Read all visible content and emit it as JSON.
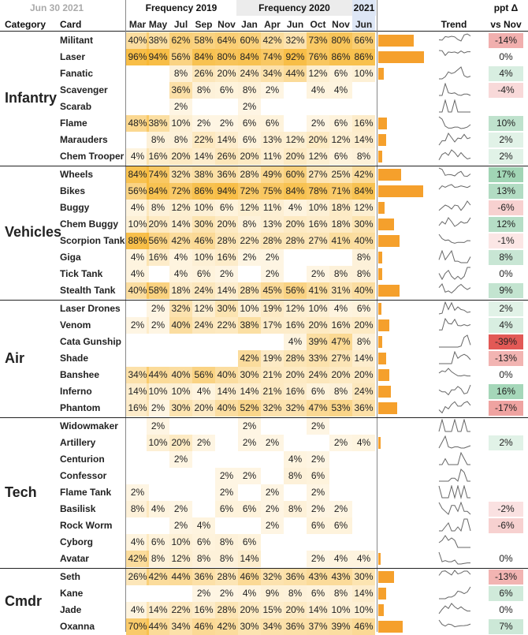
{
  "header": {
    "date": "Jun 30 2021",
    "col_category": "Category",
    "col_card": "Card",
    "group_2019": "Frequency 2019",
    "group_2020": "Frequency 2020",
    "group_2021": "2021",
    "col_trend": "Trend",
    "col_delta_line1": "ppt Δ",
    "col_delta_line2": "vs Nov",
    "months": [
      "Mar",
      "May",
      "Jul",
      "Sep",
      "Nov",
      "Jan",
      "Apr",
      "Jun",
      "Oct",
      "Nov",
      "Jun"
    ]
  },
  "colors": {
    "cell_heat": "#f7b733",
    "bar": "#f5a02c",
    "positive_strong": "#4caf73",
    "negative_strong": "#e0504d",
    "grid_line": "#222222"
  },
  "chart_data": {
    "type": "table",
    "value_unit": "percent",
    "categories": [
      {
        "name": "Infantry",
        "cards": [
          {
            "name": "Militant",
            "values": [
              40,
              38,
              62,
              58,
              64,
              60,
              42,
              32,
              73,
              80,
              66
            ],
            "delta": "-14%",
            "delta_value": -14
          },
          {
            "name": "Laser",
            "values": [
              96,
              94,
              56,
              84,
              80,
              84,
              74,
              92,
              76,
              86,
              86
            ],
            "delta": "0%",
            "delta_value": 0
          },
          {
            "name": "Fanatic",
            "values": [
              null,
              null,
              8,
              26,
              20,
              24,
              34,
              44,
              12,
              6,
              10
            ],
            "delta": "4%",
            "delta_value": 4
          },
          {
            "name": "Scavenger",
            "values": [
              null,
              null,
              36,
              8,
              6,
              8,
              2,
              null,
              4,
              4,
              null
            ],
            "delta": "-4%",
            "delta_value": -4
          },
          {
            "name": "Scarab",
            "values": [
              null,
              null,
              2,
              null,
              null,
              2,
              null,
              null,
              null,
              null,
              null
            ],
            "delta": "",
            "delta_value": null
          },
          {
            "name": "Flame",
            "values": [
              48,
              38,
              10,
              2,
              2,
              6,
              6,
              null,
              2,
              6,
              16
            ],
            "delta": "10%",
            "delta_value": 10
          },
          {
            "name": "Marauders",
            "values": [
              null,
              8,
              8,
              22,
              14,
              6,
              13,
              12,
              20,
              12,
              14
            ],
            "delta": "2%",
            "delta_value": 2
          },
          {
            "name": "Chem Trooper",
            "values": [
              4,
              16,
              20,
              14,
              26,
              20,
              11,
              20,
              12,
              6,
              8
            ],
            "delta": "2%",
            "delta_value": 2
          }
        ]
      },
      {
        "name": "Vehicles",
        "cards": [
          {
            "name": "Wheels",
            "values": [
              84,
              74,
              32,
              38,
              36,
              28,
              49,
              60,
              27,
              25,
              42
            ],
            "delta": "17%",
            "delta_value": 17
          },
          {
            "name": "Bikes",
            "values": [
              56,
              84,
              72,
              86,
              94,
              72,
              75,
              84,
              78,
              71,
              84
            ],
            "delta": "13%",
            "delta_value": 13
          },
          {
            "name": "Buggy",
            "values": [
              4,
              8,
              12,
              10,
              6,
              12,
              11,
              4,
              10,
              18,
              12
            ],
            "delta": "-6%",
            "delta_value": -6
          },
          {
            "name": "Chem Buggy",
            "values": [
              10,
              20,
              14,
              30,
              20,
              8,
              13,
              20,
              16,
              18,
              30
            ],
            "delta": "12%",
            "delta_value": 12
          },
          {
            "name": "Scorpion Tank",
            "values": [
              88,
              56,
              42,
              46,
              28,
              22,
              28,
              28,
              27,
              41,
              40
            ],
            "delta": "-1%",
            "delta_value": -1
          },
          {
            "name": "Giga",
            "values": [
              4,
              16,
              4,
              10,
              16,
              2,
              2,
              null,
              null,
              null,
              8
            ],
            "delta": "8%",
            "delta_value": 8
          },
          {
            "name": "Tick Tank",
            "values": [
              4,
              null,
              4,
              6,
              2,
              null,
              2,
              null,
              2,
              8,
              8
            ],
            "delta": "0%",
            "delta_value": 0
          },
          {
            "name": "Stealth Tank",
            "values": [
              40,
              58,
              18,
              24,
              14,
              28,
              45,
              56,
              41,
              31,
              40
            ],
            "delta": "9%",
            "delta_value": 9
          }
        ]
      },
      {
        "name": "Air",
        "cards": [
          {
            "name": "Laser Drones",
            "values": [
              null,
              2,
              32,
              12,
              30,
              10,
              19,
              12,
              10,
              4,
              6
            ],
            "delta": "2%",
            "delta_value": 2
          },
          {
            "name": "Venom",
            "values": [
              2,
              2,
              40,
              24,
              22,
              38,
              17,
              16,
              20,
              16,
              20
            ],
            "delta": "4%",
            "delta_value": 4
          },
          {
            "name": "Cata Gunship",
            "values": [
              null,
              null,
              null,
              null,
              null,
              null,
              null,
              4,
              39,
              47,
              8
            ],
            "delta": "-39%",
            "delta_value": -39
          },
          {
            "name": "Shade",
            "values": [
              null,
              null,
              null,
              null,
              null,
              42,
              19,
              28,
              33,
              27,
              14
            ],
            "delta": "-13%",
            "delta_value": -13
          },
          {
            "name": "Banshee",
            "values": [
              34,
              44,
              40,
              56,
              40,
              30,
              21,
              20,
              24,
              20,
              20
            ],
            "delta": "0%",
            "delta_value": 0
          },
          {
            "name": "Inferno",
            "values": [
              14,
              10,
              10,
              4,
              14,
              14,
              21,
              16,
              6,
              8,
              24
            ],
            "delta": "16%",
            "delta_value": 16
          },
          {
            "name": "Phantom",
            "values": [
              16,
              2,
              30,
              20,
              40,
              52,
              32,
              32,
              47,
              53,
              36
            ],
            "delta": "-17%",
            "delta_value": -17
          }
        ]
      },
      {
        "name": "Tech",
        "cards": [
          {
            "name": "Widowmaker",
            "values": [
              null,
              2,
              null,
              null,
              null,
              2,
              null,
              null,
              2,
              null,
              null
            ],
            "delta": "",
            "delta_value": null
          },
          {
            "name": "Artillery",
            "values": [
              null,
              10,
              20,
              2,
              null,
              2,
              2,
              null,
              null,
              2,
              4
            ],
            "delta": "2%",
            "delta_value": 2
          },
          {
            "name": "Centurion",
            "values": [
              null,
              null,
              2,
              null,
              null,
              null,
              null,
              4,
              2,
              null,
              null
            ],
            "delta": "",
            "delta_value": null
          },
          {
            "name": "Confessor",
            "values": [
              null,
              null,
              null,
              null,
              2,
              2,
              null,
              8,
              6,
              null,
              null
            ],
            "delta": "",
            "delta_value": null
          },
          {
            "name": "Flame Tank",
            "values": [
              2,
              null,
              null,
              null,
              2,
              null,
              2,
              null,
              2,
              null,
              null
            ],
            "delta": "",
            "delta_value": null
          },
          {
            "name": "Basilisk",
            "values": [
              8,
              4,
              2,
              null,
              6,
              6,
              2,
              8,
              2,
              2,
              null
            ],
            "delta": "-2%",
            "delta_value": -2
          },
          {
            "name": "Rock Worm",
            "values": [
              null,
              null,
              2,
              4,
              null,
              null,
              2,
              null,
              6,
              6,
              null
            ],
            "delta": "-6%",
            "delta_value": -6
          },
          {
            "name": "Cyborg",
            "values": [
              4,
              6,
              10,
              6,
              8,
              6,
              null,
              null,
              null,
              null,
              null
            ],
            "delta": "",
            "delta_value": null
          },
          {
            "name": "Avatar",
            "values": [
              42,
              8,
              12,
              8,
              8,
              14,
              null,
              null,
              2,
              4,
              4
            ],
            "delta": "0%",
            "delta_value": 0
          }
        ]
      },
      {
        "name": "Cmdr",
        "cards": [
          {
            "name": "Seth",
            "values": [
              26,
              42,
              44,
              36,
              28,
              46,
              32,
              36,
              43,
              43,
              30
            ],
            "delta": "-13%",
            "delta_value": -13
          },
          {
            "name": "Kane",
            "values": [
              null,
              null,
              null,
              2,
              2,
              4,
              9,
              8,
              6,
              8,
              14
            ],
            "delta": "6%",
            "delta_value": 6
          },
          {
            "name": "Jade",
            "values": [
              4,
              14,
              22,
              16,
              28,
              20,
              15,
              20,
              14,
              10,
              10
            ],
            "delta": "0%",
            "delta_value": 0
          },
          {
            "name": "Oxanna",
            "values": [
              70,
              44,
              34,
              46,
              42,
              30,
              34,
              36,
              37,
              39,
              46
            ],
            "delta": "7%",
            "delta_value": 7
          }
        ]
      }
    ]
  }
}
